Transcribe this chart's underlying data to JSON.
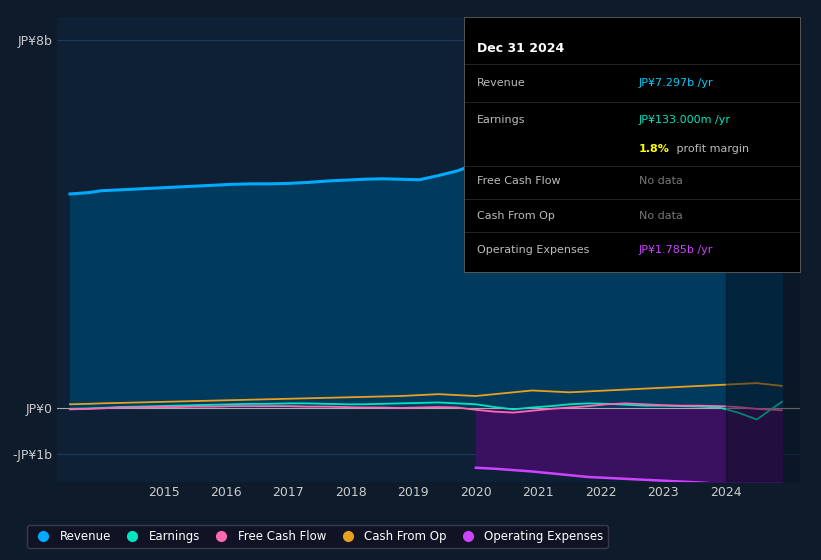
{
  "bg_color": "#0d1b2a",
  "plot_bg_color": "#0d2035",
  "grid_color": "#1e3a5f",
  "ylabel_top": "JP¥8b",
  "ylabel_zero": "JP¥0",
  "ylabel_neg": "-JP¥1b",
  "years_x": [
    2013.5,
    2013.8,
    2014.0,
    2014.3,
    2014.6,
    2014.9,
    2015.2,
    2015.5,
    2015.8,
    2016.1,
    2016.4,
    2016.7,
    2017.0,
    2017.3,
    2017.6,
    2017.9,
    2018.2,
    2018.5,
    2018.8,
    2019.1,
    2019.4,
    2019.7,
    2020.0,
    2020.3,
    2020.6,
    2020.9,
    2021.2,
    2021.5,
    2021.8,
    2022.1,
    2022.4,
    2022.7,
    2023.0,
    2023.3,
    2023.6,
    2023.9,
    2024.2,
    2024.5,
    2024.9
  ],
  "revenue": [
    4.65,
    4.68,
    4.72,
    4.74,
    4.76,
    4.78,
    4.8,
    4.82,
    4.84,
    4.86,
    4.87,
    4.87,
    4.88,
    4.9,
    4.93,
    4.95,
    4.97,
    4.98,
    4.97,
    4.96,
    5.05,
    5.15,
    5.3,
    5.5,
    5.6,
    5.7,
    5.75,
    5.72,
    5.8,
    5.92,
    6.05,
    6.1,
    6.35,
    6.55,
    6.7,
    6.9,
    7.05,
    7.2,
    7.297
  ],
  "revenue_color": "#00aaff",
  "revenue_fill_color": "#003a5c",
  "earnings": [
    -0.02,
    -0.01,
    0.0,
    0.02,
    0.03,
    0.04,
    0.05,
    0.06,
    0.07,
    0.08,
    0.09,
    0.09,
    0.1,
    0.1,
    0.09,
    0.08,
    0.08,
    0.09,
    0.1,
    0.11,
    0.12,
    0.1,
    0.08,
    0.02,
    -0.03,
    0.01,
    0.04,
    0.08,
    0.1,
    0.09,
    0.07,
    0.05,
    0.05,
    0.04,
    0.03,
    0.01,
    -0.1,
    -0.25,
    0.133
  ],
  "earnings_color": "#00e5c0",
  "free_cash_flow": [
    -0.03,
    -0.02,
    -0.01,
    0.01,
    0.01,
    0.02,
    0.02,
    0.03,
    0.03,
    0.04,
    0.04,
    0.04,
    0.04,
    0.03,
    0.03,
    0.02,
    0.01,
    0.01,
    0.0,
    0.01,
    0.02,
    0.01,
    -0.04,
    -0.08,
    -0.1,
    -0.06,
    -0.02,
    0.01,
    0.04,
    0.08,
    0.1,
    0.08,
    0.06,
    0.05,
    0.05,
    0.04,
    0.02,
    -0.02,
    -0.05
  ],
  "free_cash_flow_color": "#ff69b4",
  "cash_from_op": [
    0.08,
    0.09,
    0.1,
    0.11,
    0.12,
    0.13,
    0.14,
    0.15,
    0.16,
    0.17,
    0.18,
    0.19,
    0.2,
    0.21,
    0.22,
    0.23,
    0.24,
    0.25,
    0.26,
    0.28,
    0.3,
    0.28,
    0.26,
    0.3,
    0.34,
    0.38,
    0.36,
    0.34,
    0.36,
    0.38,
    0.4,
    0.42,
    0.44,
    0.46,
    0.48,
    0.5,
    0.52,
    0.54,
    0.48
  ],
  "cash_from_op_color": "#e8a020",
  "op_x": [
    2020.0,
    2020.3,
    2020.6,
    2020.9,
    2021.2,
    2021.5,
    2021.8,
    2022.1,
    2022.4,
    2022.7,
    2023.0,
    2023.3,
    2023.6,
    2023.9,
    2024.2,
    2024.5,
    2024.9
  ],
  "op_expenses": [
    -1.3,
    -1.32,
    -1.35,
    -1.38,
    -1.42,
    -1.46,
    -1.5,
    -1.52,
    -1.54,
    -1.56,
    -1.58,
    -1.6,
    -1.62,
    -1.65,
    -1.68,
    -1.72,
    -1.785
  ],
  "op_expenses_color": "#cc44ff",
  "op_expenses_fill_color": "#3a1060",
  "x_ticks": [
    2015,
    2016,
    2017,
    2018,
    2019,
    2020,
    2021,
    2022,
    2023,
    2024
  ],
  "xlim": [
    2013.3,
    2025.2
  ],
  "ylim": [
    -1.6,
    8.5
  ],
  "dark_band_start": 2024.0,
  "info_box": {
    "date": "Dec 31 2024",
    "revenue_label": "Revenue",
    "revenue_val": "JP¥7.297b /yr",
    "earnings_label": "Earnings",
    "earnings_val": "JP¥133.000m /yr",
    "margin_text": "1.8% profit margin",
    "fcf_label": "Free Cash Flow",
    "fcf_val": "No data",
    "cashop_label": "Cash From Op",
    "cashop_val": "No data",
    "opex_label": "Operating Expenses",
    "opex_val": "JP¥1.785b /yr",
    "highlight_color": "#00ccff",
    "earnings_color": "#00e5c0",
    "margin_bold": "1.8%",
    "margin_rest": " profit margin",
    "opex_color": "#cc44ff",
    "nodata_color": "#777777"
  },
  "legend_items": [
    {
      "label": "Revenue",
      "color": "#00aaff"
    },
    {
      "label": "Earnings",
      "color": "#00e5c0"
    },
    {
      "label": "Free Cash Flow",
      "color": "#ff69b4"
    },
    {
      "label": "Cash From Op",
      "color": "#e8a020"
    },
    {
      "label": "Operating Expenses",
      "color": "#cc44ff"
    }
  ]
}
